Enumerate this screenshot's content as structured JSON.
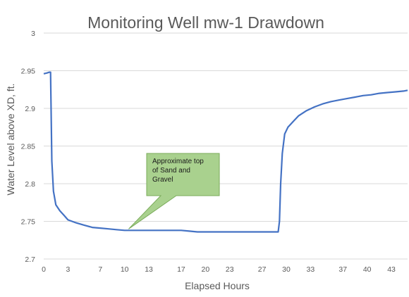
{
  "chart_data": {
    "type": "line",
    "title": "Monitoring Well mw-1 Drawdown",
    "xlabel": "Elapsed Hours",
    "ylabel": "Water Level above XD, ft.",
    "xlim": [
      0,
      45
    ],
    "ylim": [
      2.7,
      3.0
    ],
    "x_ticks": [
      "0",
      "3",
      "7",
      "10",
      "13",
      "17",
      "20",
      "23",
      "27",
      "30",
      "33",
      "37",
      "40",
      "43"
    ],
    "y_ticks": [
      "2.7",
      "2.75",
      "2.8",
      "2.85",
      "2.9",
      "2.95",
      "3"
    ],
    "grid": "horizontal",
    "legend": "none",
    "series": [
      {
        "color": "#4472c4",
        "x": [
          0,
          0.4,
          0.7,
          0.85,
          1.0,
          1.2,
          1.5,
          2.0,
          2.5,
          3.0,
          4.0,
          5.0,
          6.0,
          7.0,
          8.0,
          9.0,
          10.0,
          11.0,
          12.0,
          13.0,
          14.0,
          15.0,
          16.0,
          17.0,
          18.0,
          19.0,
          20.0,
          21.0,
          22.0,
          23.0,
          24.0,
          25.0,
          26.0,
          27.0,
          28.0,
          29.0,
          29.15,
          29.3,
          29.5,
          29.8,
          30.2,
          30.8,
          31.5,
          32.5,
          33.5,
          34.5,
          35.5,
          36.5,
          37.5,
          38.5,
          39.5,
          40.5,
          41.5,
          42.5,
          43.5,
          44.5,
          45.0
        ],
        "y": [
          2.946,
          2.947,
          2.948,
          2.948,
          2.83,
          2.79,
          2.772,
          2.764,
          2.758,
          2.752,
          2.748,
          2.745,
          2.742,
          2.741,
          2.74,
          2.739,
          2.738,
          2.738,
          2.738,
          2.738,
          2.738,
          2.738,
          2.738,
          2.738,
          2.737,
          2.736,
          2.736,
          2.736,
          2.736,
          2.736,
          2.736,
          2.736,
          2.736,
          2.736,
          2.736,
          2.736,
          2.75,
          2.8,
          2.84,
          2.866,
          2.875,
          2.882,
          2.89,
          2.897,
          2.902,
          2.906,
          2.909,
          2.911,
          2.913,
          2.915,
          2.917,
          2.918,
          2.92,
          2.921,
          2.922,
          2.923,
          2.924
        ]
      }
    ],
    "annotations": [
      {
        "text_lines": [
          "Approximate top",
          "of Sand and",
          "Gravel"
        ],
        "points_to": {
          "x": 10.5,
          "y": 2.738
        }
      }
    ]
  },
  "colors": {
    "line": "#4472c4",
    "callout_fill": "#a9d18e",
    "callout_border": "#7aab5a",
    "grid": "#d9d9d9",
    "text": "#595959"
  }
}
